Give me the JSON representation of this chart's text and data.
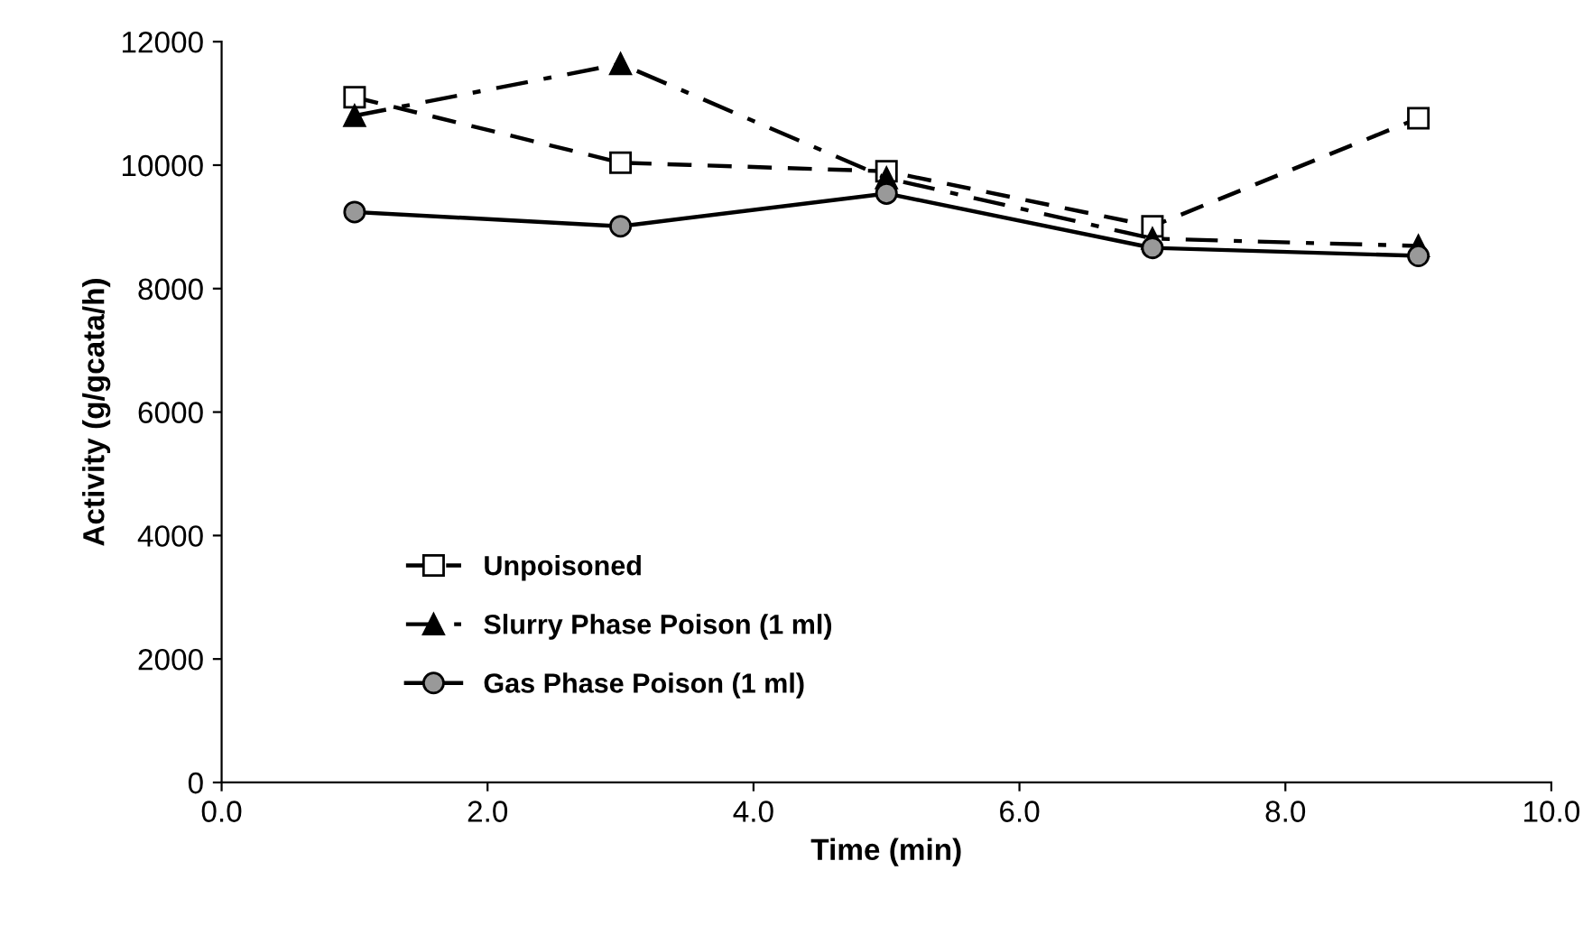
{
  "chart_data": {
    "type": "line",
    "xlabel": "Time (min)",
    "ylabel": "Activity (g/gcata/h)",
    "x": [
      1,
      3,
      5,
      7,
      9
    ],
    "series": [
      {
        "name": "Unpoisoned",
        "color": "#000000",
        "marker": "square",
        "line_style": "dashed",
        "values": [
          11100,
          10040,
          9900,
          9010,
          10760
        ]
      },
      {
        "name": "Slurry Phase Poison (1 ml)",
        "color": "#000000",
        "marker": "triangle",
        "line_style": "dashdot",
        "values": [
          10800,
          11640,
          9790,
          8810,
          8690
        ]
      },
      {
        "name": "Gas Phase Poison (1 ml)",
        "color": "#999999",
        "marker": "circle",
        "line_style": "solid",
        "values": [
          9240,
          9010,
          9540,
          8660,
          8530
        ]
      }
    ],
    "xlim": [
      0,
      10
    ],
    "xticks": [
      {
        "value": 0,
        "label": "0.0"
      },
      {
        "value": 2,
        "label": "2.0"
      },
      {
        "value": 4,
        "label": "4.0"
      },
      {
        "value": 6,
        "label": "6.0"
      },
      {
        "value": 8,
        "label": "8.0"
      },
      {
        "value": 10,
        "label": "10.0"
      }
    ],
    "ylim": [
      0,
      12000
    ],
    "yticks": [
      0,
      2000,
      4000,
      6000,
      8000,
      10000,
      12000
    ],
    "grid": false,
    "legend": "bottom left"
  }
}
